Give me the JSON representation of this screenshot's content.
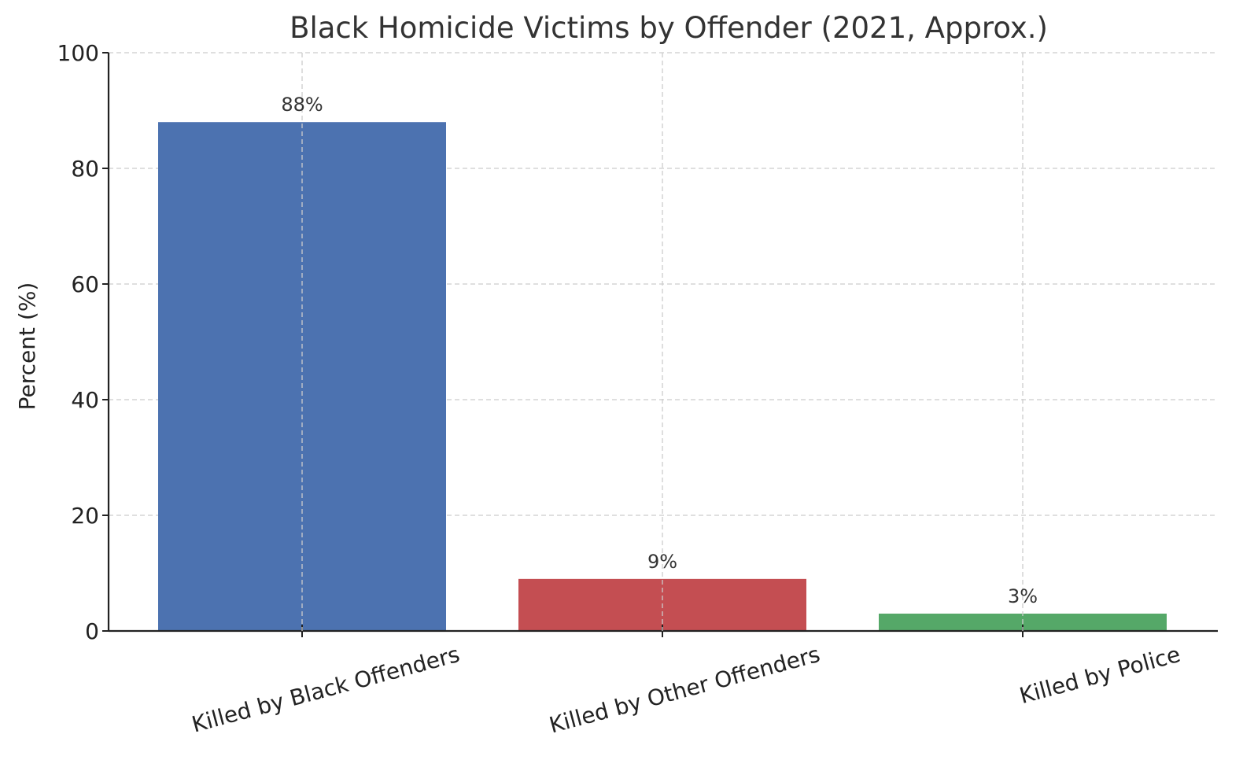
{
  "chart_data": {
    "type": "bar",
    "title": "Black Homicide Victims by Offender (2021, Approx.)",
    "xlabel": "",
    "ylabel": "Percent (%)",
    "categories": [
      "Killed by Black Offenders",
      "Killed by Other Offenders",
      "Killed by Police"
    ],
    "values": [
      88,
      9,
      3
    ],
    "data_labels": [
      "88%",
      "9%",
      "3%"
    ],
    "colors": [
      "#4c72b0",
      "#c44e52",
      "#55a868"
    ],
    "ylim": [
      0,
      100
    ],
    "yticks": [
      0,
      20,
      40,
      60,
      80,
      100
    ],
    "ytick_labels": [
      "0",
      "20",
      "40",
      "60",
      "80",
      "100"
    ],
    "grid": true,
    "legend": "none"
  }
}
